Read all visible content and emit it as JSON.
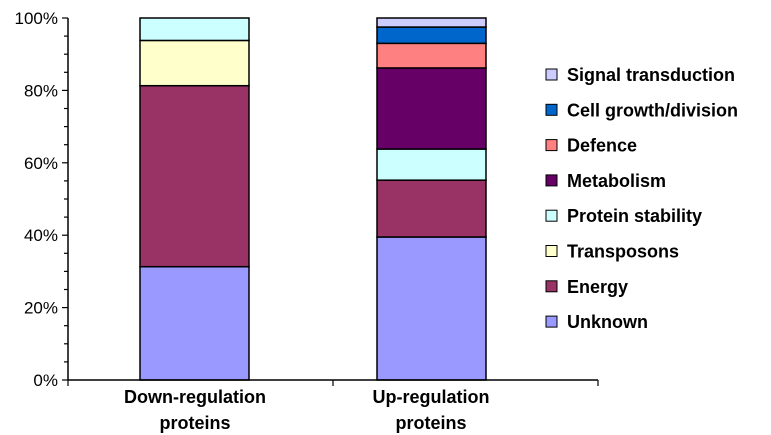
{
  "chart_data": {
    "type": "bar",
    "stacked": true,
    "percent": true,
    "categories": [
      "Down-regulation proteins",
      "Up-regulation proteins"
    ],
    "category_lines": [
      [
        "Down-regulation",
        "proteins"
      ],
      [
        "Up-regulation",
        "proteins"
      ]
    ],
    "ylim": [
      0,
      100
    ],
    "yticks": [
      0,
      20,
      40,
      60,
      80,
      100
    ],
    "ytick_labels": [
      "0%",
      "20%",
      "40%",
      "60%",
      "80%",
      "100%"
    ],
    "grid": false,
    "legend_position": "right",
    "series": [
      {
        "name": "Unknown",
        "color": "#9999ff",
        "values": [
          31.3,
          39.5
        ]
      },
      {
        "name": "Energy",
        "color": "#993366",
        "values": [
          50,
          15.7
        ]
      },
      {
        "name": "Transposons",
        "color": "#ffffcc",
        "values": [
          12.5,
          0
        ]
      },
      {
        "name": "Protein stability",
        "color": "#ccffff",
        "values": [
          6.2,
          8.6
        ]
      },
      {
        "name": "Metabolism",
        "color": "#660066",
        "values": [
          0,
          22.4
        ]
      },
      {
        "name": "Defence",
        "color": "#ff8080",
        "values": [
          0,
          6.8
        ]
      },
      {
        "name": "Cell growth/division",
        "color": "#0066cc",
        "values": [
          0,
          4.5
        ]
      },
      {
        "name": "Signal transduction",
        "color": "#ccccff",
        "values": [
          0,
          2.5
        ]
      }
    ]
  }
}
